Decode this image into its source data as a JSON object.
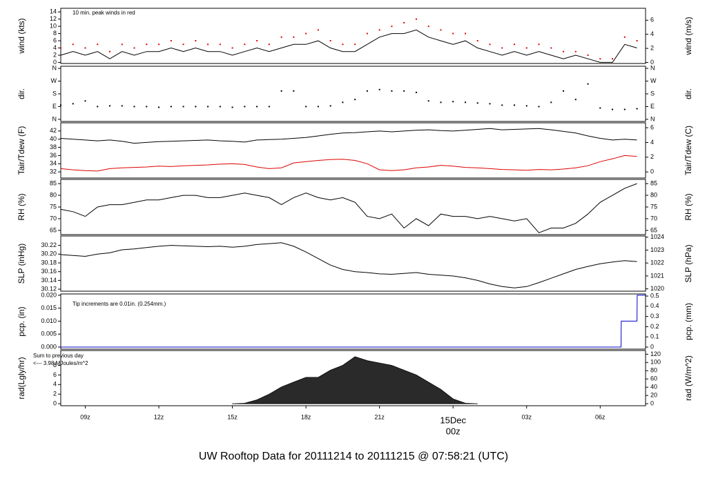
{
  "title": "UW Rooftop Data for 20111214  to  20111215 @ 07:58:21  (UTC)",
  "title_color": "#1a1acc",
  "chart_data": [
    {
      "type": "line",
      "ylabel": "wind (kts)",
      "y2label": "wind (m/s)",
      "x": [
        8.0,
        8.5,
        9.0,
        9.5,
        10.0,
        10.5,
        11.0,
        11.5,
        12.0,
        12.5,
        13.0,
        13.5,
        14.0,
        14.5,
        15.0,
        15.5,
        16.0,
        16.5,
        17.0,
        17.5,
        18.0,
        18.5,
        19.0,
        19.5,
        20.0,
        20.5,
        21.0,
        21.5,
        22.0,
        22.5,
        23.0,
        23.5,
        24.0,
        24.5,
        25.0,
        25.5,
        26.0,
        26.5,
        27.0,
        27.5,
        28.0,
        28.5,
        29.0,
        29.5,
        30.0,
        30.5,
        31.0,
        31.5
      ],
      "xlim": [
        8.0,
        31.85
      ],
      "ylim": [
        -0.3,
        15
      ],
      "yticks": [
        0,
        2,
        4,
        6,
        8,
        10,
        12,
        14
      ],
      "y2lim": [
        -0.15,
        7.7
      ],
      "y2ticks": [
        0,
        2,
        4,
        6
      ],
      "series": [
        {
          "color": "#000000",
          "mode": "line",
          "values": [
            2,
            3,
            2,
            3,
            1,
            3,
            2,
            3,
            3,
            4,
            3,
            4,
            3,
            3,
            2,
            3,
            4,
            3,
            4,
            5,
            5,
            6,
            4,
            3,
            3,
            5,
            7,
            8,
            8,
            9,
            7,
            6,
            5,
            6,
            4,
            3,
            2,
            3,
            2,
            3,
            2,
            1,
            2,
            1,
            0,
            0,
            5,
            4
          ]
        },
        {
          "color": "#dd0000",
          "mode": "points",
          "values": [
            4,
            5,
            4,
            5,
            3,
            5,
            4,
            5,
            5,
            6,
            5,
            6,
            5,
            5,
            4,
            5,
            6,
            5,
            7,
            7,
            8,
            9,
            6,
            5,
            5,
            8,
            9,
            10,
            11,
            12,
            10,
            9,
            8,
            8,
            6,
            5,
            4,
            5,
            4,
            5,
            4,
            3,
            3,
            2,
            1,
            1,
            7,
            6
          ]
        }
      ],
      "annotations": [
        {
          "text": "10 min. peak winds in red",
          "color": "#dd0000"
        }
      ]
    },
    {
      "type": "scatter",
      "ylabel": "dir.",
      "y2label": "dir.",
      "x": [
        8.0,
        8.5,
        9.0,
        9.5,
        10.0,
        10.5,
        11.0,
        11.5,
        12.0,
        12.5,
        13.0,
        13.5,
        14.0,
        14.5,
        15.0,
        15.5,
        16.0,
        16.5,
        17.0,
        17.5,
        18.0,
        18.5,
        19.0,
        19.5,
        20.0,
        20.5,
        21.0,
        21.5,
        22.0,
        22.5,
        23.0,
        23.5,
        24.0,
        24.5,
        25.0,
        25.5,
        26.0,
        26.5,
        27.0,
        27.5,
        28.0,
        28.5,
        29.0,
        29.5,
        30.0,
        30.5,
        31.0,
        31.5
      ],
      "xlim": [
        8.0,
        31.85
      ],
      "ylim": [
        -15,
        375
      ],
      "yticks": [
        {
          "value": 0,
          "label": "N"
        },
        {
          "value": 90,
          "label": "E"
        },
        {
          "value": 180,
          "label": "S"
        },
        {
          "value": 270,
          "label": "W"
        },
        {
          "value": 360,
          "label": "N"
        }
      ],
      "y2lim": [
        -15,
        375
      ],
      "y2ticks": [
        {
          "value": 0,
          "label": "N"
        },
        {
          "value": 90,
          "label": "E"
        },
        {
          "value": 180,
          "label": "S"
        },
        {
          "value": 270,
          "label": "W"
        },
        {
          "value": 360,
          "label": "N"
        }
      ],
      "series": [
        {
          "color": "#000000",
          "mode": "points",
          "values": [
            100,
            110,
            130,
            90,
            95,
            95,
            90,
            90,
            85,
            90,
            90,
            90,
            90,
            90,
            85,
            90,
            90,
            90,
            200,
            200,
            90,
            90,
            95,
            120,
            140,
            200,
            210,
            200,
            200,
            190,
            130,
            120,
            125,
            120,
            115,
            110,
            100,
            100,
            95,
            90,
            120,
            200,
            140,
            250,
            80,
            70,
            70,
            75
          ]
        }
      ]
    },
    {
      "type": "line",
      "ylabel": "Tair/Tdew (F)",
      "y2label": "Tair/Tdew (C)",
      "x": [
        8.0,
        8.5,
        9.0,
        9.5,
        10.0,
        10.5,
        11.0,
        11.5,
        12.0,
        12.5,
        13.0,
        13.5,
        14.0,
        14.5,
        15.0,
        15.5,
        16.0,
        16.5,
        17.0,
        17.5,
        18.0,
        18.5,
        19.0,
        19.5,
        20.0,
        20.5,
        21.0,
        21.5,
        22.0,
        22.5,
        23.0,
        23.5,
        24.0,
        24.5,
        25.0,
        25.5,
        26.0,
        26.5,
        27.0,
        27.5,
        28.0,
        28.5,
        29.0,
        29.5,
        30.0,
        30.5,
        31.0,
        31.5
      ],
      "xlim": [
        8.0,
        31.85
      ],
      "ylim": [
        30.5,
        44
      ],
      "yticks": [
        32,
        34,
        36,
        38,
        40,
        42
      ],
      "y2lim": [
        -0.83,
        6.67
      ],
      "y2ticks": [
        0,
        2,
        4,
        6
      ],
      "series": [
        {
          "color": "#000000",
          "mode": "line",
          "values": [
            40.2,
            40.0,
            39.8,
            39.6,
            39.8,
            39.5,
            39.0,
            39.2,
            39.4,
            39.5,
            39.6,
            39.7,
            39.8,
            39.6,
            39.5,
            39.3,
            39.8,
            39.9,
            40.0,
            40.2,
            40.4,
            40.8,
            41.2,
            41.5,
            41.6,
            41.8,
            42.0,
            41.8,
            42.0,
            42.2,
            42.3,
            42.1,
            42.0,
            42.2,
            42.4,
            42.6,
            42.3,
            42.4,
            42.5,
            42.6,
            42.3,
            41.9,
            41.5,
            40.8,
            40.2,
            39.8,
            40.0,
            39.8
          ]
        },
        {
          "color": "#dd0000",
          "mode": "line",
          "values": [
            32.8,
            32.5,
            32.3,
            32.2,
            32.8,
            33.0,
            33.1,
            33.2,
            33.4,
            33.3,
            33.5,
            33.6,
            33.7,
            33.9,
            34.0,
            33.8,
            33.2,
            32.8,
            33.0,
            34.2,
            34.5,
            34.8,
            35.0,
            35.1,
            34.8,
            34.0,
            32.5,
            32.3,
            32.5,
            33.0,
            33.2,
            33.6,
            33.4,
            33.1,
            33.0,
            32.8,
            32.6,
            32.5,
            32.4,
            32.6,
            32.5,
            32.7,
            33.0,
            33.5,
            34.5,
            35.2,
            36.0,
            35.8
          ]
        }
      ]
    },
    {
      "type": "line",
      "ylabel": "RH (%)",
      "y2label": "RH (%)",
      "x": [
        8.0,
        8.5,
        9.0,
        9.5,
        10.0,
        10.5,
        11.0,
        11.5,
        12.0,
        12.5,
        13.0,
        13.5,
        14.0,
        14.5,
        15.0,
        15.5,
        16.0,
        16.5,
        17.0,
        17.5,
        18.0,
        18.5,
        19.0,
        19.5,
        20.0,
        20.5,
        21.0,
        21.5,
        22.0,
        22.5,
        23.0,
        23.5,
        24.0,
        24.5,
        25.0,
        25.5,
        26.0,
        26.5,
        27.0,
        27.5,
        28.0,
        28.5,
        29.0,
        29.5,
        30.0,
        30.5,
        31.0,
        31.5
      ],
      "xlim": [
        8.0,
        31.85
      ],
      "ylim": [
        63.2,
        86.8
      ],
      "yticks": [
        65,
        70,
        75,
        80,
        85
      ],
      "y2lim": [
        63.2,
        86.8
      ],
      "y2ticks": [
        65,
        70,
        75,
        80,
        85
      ],
      "series": [
        {
          "color": "#000000",
          "mode": "line",
          "values": [
            74,
            73,
            71,
            75,
            76,
            76,
            77,
            78,
            78,
            79,
            80,
            80,
            79,
            79,
            80,
            81,
            80,
            79,
            76,
            79,
            81,
            79,
            78,
            79,
            77,
            71,
            70,
            72,
            66,
            70,
            67,
            72,
            71,
            71,
            70,
            71,
            70,
            69,
            70,
            64,
            66,
            66,
            68,
            72,
            77,
            80,
            83,
            85
          ]
        }
      ]
    },
    {
      "type": "line",
      "ylabel": "SLP (inHg)",
      "y2label": "SLP (hPa)",
      "x": [
        8.0,
        8.5,
        9.0,
        9.5,
        10.0,
        10.5,
        11.0,
        11.5,
        12.0,
        12.5,
        13.0,
        13.5,
        14.0,
        14.5,
        15.0,
        15.5,
        16.0,
        16.5,
        17.0,
        17.5,
        18.0,
        18.5,
        19.0,
        19.5,
        20.0,
        20.5,
        21.0,
        21.5,
        22.0,
        22.5,
        23.0,
        23.5,
        24.0,
        24.5,
        25.0,
        25.5,
        26.0,
        26.5,
        27.0,
        27.5,
        28.0,
        28.5,
        29.0,
        29.5,
        30.0,
        30.5,
        31.0,
        31.5
      ],
      "xlim": [
        8.0,
        31.85
      ],
      "ylim": [
        30.1154,
        30.2415
      ],
      "yticks": [
        30.12,
        30.14,
        30.16,
        30.18,
        {
          "value": 30.2,
          "label": "30.20"
        },
        30.22
      ],
      "y2lim": [
        1019.82,
        1024.09
      ],
      "y2ticks": [
        1020,
        1021,
        1022,
        1023,
        1024
      ],
      "series": [
        {
          "color": "#000000",
          "mode": "line",
          "values": [
            30.199,
            30.197,
            30.195,
            30.2,
            30.203,
            30.21,
            30.212,
            30.215,
            30.218,
            30.22,
            30.219,
            30.218,
            30.217,
            30.218,
            30.216,
            30.218,
            30.222,
            30.224,
            30.226,
            30.218,
            30.205,
            30.19,
            30.175,
            30.165,
            30.16,
            30.158,
            30.155,
            30.154,
            30.156,
            30.158,
            30.154,
            30.152,
            30.15,
            30.146,
            30.14,
            30.132,
            30.126,
            30.123,
            30.126,
            30.135,
            30.145,
            30.155,
            30.165,
            30.172,
            30.178,
            30.182,
            30.185,
            30.183
          ]
        }
      ]
    },
    {
      "type": "line",
      "ylabel": "pcp. (in)",
      "y2label": "pcp. (mm)",
      "x": [
        8.0,
        30.85,
        30.86,
        31.5,
        31.51,
        31.85
      ],
      "xlim": [
        8.0,
        31.85
      ],
      "ylim": [
        -0.0008,
        0.0205
      ],
      "yticks": [
        {
          "value": 0,
          "label": "0.000"
        },
        0.005,
        {
          "value": 0.01,
          "label": "0.010"
        },
        0.015,
        {
          "value": 0.02,
          "label": "0.020"
        }
      ],
      "y2lim": [
        -0.0203,
        0.5207
      ],
      "y2ticks": [
        0,
        0.1,
        0.2,
        0.3,
        0.4,
        0.5
      ],
      "series": [
        {
          "color": "#0000cc",
          "mode": "line",
          "values": [
            0,
            0,
            0.01,
            0.01,
            0.02,
            0.02
          ]
        }
      ],
      "annotations": [
        {
          "text": "Tip increments are 0.01in. (0.254mm.)",
          "color": "#0000aa"
        }
      ]
    },
    {
      "type": "area",
      "ylabel": "rad(Lgly/hr)",
      "y2label": "rad (W/m^2)",
      "x": [
        15.0,
        15.5,
        16.0,
        16.5,
        17.0,
        17.5,
        18.0,
        18.5,
        19.0,
        19.5,
        20.0,
        20.5,
        21.0,
        21.5,
        22.0,
        22.5,
        23.0,
        23.5,
        24.0,
        24.5,
        25.0
      ],
      "xlim": [
        8.0,
        31.85
      ],
      "ylim": [
        -0.42,
        11.1
      ],
      "yticks": [
        0,
        2,
        4,
        6,
        8
      ],
      "y2lim": [
        -4.9,
        129
      ],
      "y2ticks": [
        0,
        20,
        40,
        60,
        80,
        100,
        120
      ],
      "xticks": [
        {
          "value": 9,
          "label": "09z"
        },
        {
          "value": 12,
          "label": "12z"
        },
        {
          "value": 15,
          "label": "15z"
        },
        {
          "value": 18,
          "label": "18z"
        },
        {
          "value": 21,
          "label": "21z"
        },
        {
          "value": 24,
          "label": "15Dec",
          "sublabel": "00z",
          "color": "#cc0000"
        },
        {
          "value": 27,
          "label": "03z"
        },
        {
          "value": 30,
          "label": "06z"
        }
      ],
      "series": [
        {
          "color": "#2a2a2a",
          "mode": "area",
          "values": [
            0,
            0.1,
            0.8,
            2.0,
            3.5,
            4.5,
            5.5,
            5.5,
            7.0,
            8.0,
            9.8,
            9.0,
            8.5,
            8.0,
            7.0,
            6.0,
            4.5,
            3.0,
            1.0,
            0.1,
            0
          ]
        }
      ],
      "annotations": [
        {
          "text": "Sum to previous day",
          "color": "#9900cc"
        },
        {
          "text": "<--- 3.98 MJoules/m^2",
          "color": "#9900cc"
        }
      ]
    }
  ]
}
